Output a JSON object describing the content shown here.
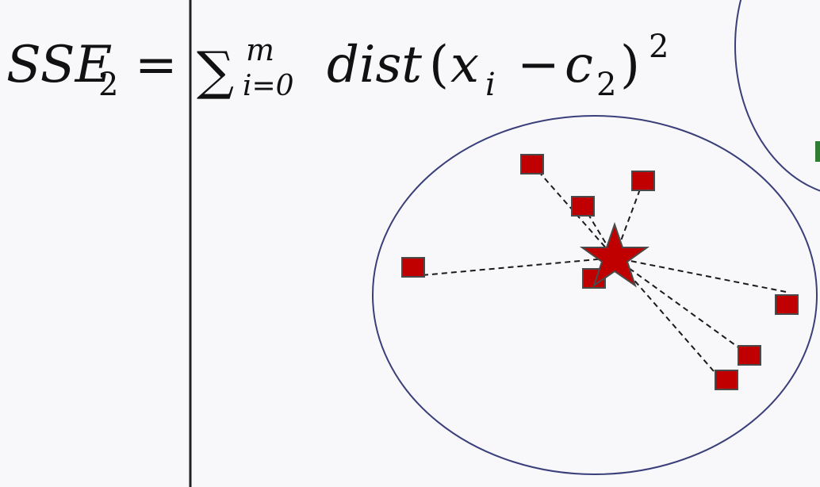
{
  "formula": {
    "lhs_main": "SSE",
    "lhs_sub": "2",
    "equals": "=",
    "sum_symbol": "∑",
    "sum_upper": "m",
    "sum_lower": "i=0",
    "func": "dist",
    "open_paren": "(",
    "x_var": "x",
    "x_sub": "i",
    "minus": "−",
    "c_var": "c",
    "c_sub": "2",
    "close_paren": ")",
    "exponent": "2"
  },
  "colors": {
    "point": "#c00000",
    "point_stroke": "#4a4a4a",
    "cluster_outline": "#3a3f7a",
    "divider": "#222222",
    "dashed_line": "#1a1a1a",
    "background": "#f8f8fa",
    "partial_point": "#2e7d32"
  },
  "icons": {
    "centroid": "star-icon",
    "data_point": "square-icon"
  }
}
